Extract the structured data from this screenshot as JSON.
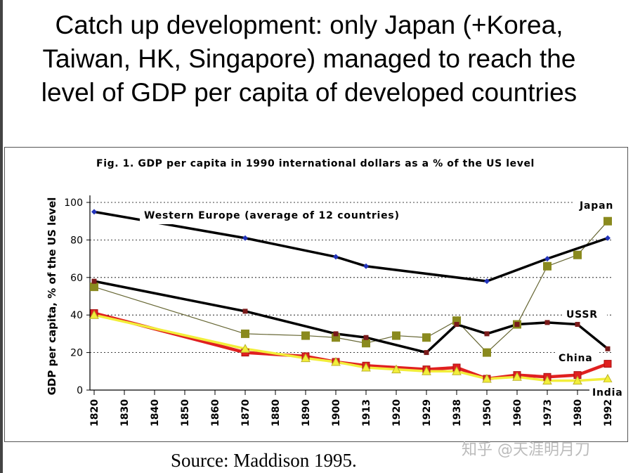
{
  "slide": {
    "title_lines": [
      "Catch up development: only Japan (+Korea,",
      "Taiwan, HK, Singapore) managed to reach the",
      "level of GDP per capita of developed countries"
    ],
    "source": "Source:  Maddison 1995.",
    "watermark": "知乎 @天涯明月刀"
  },
  "chart_data": {
    "type": "line",
    "title": "Fig. 1. GDP per capita in 1990 international dollars as a % of the US level",
    "ylabel": "GDP per capita, % of the US level",
    "xlabel": "",
    "ylim": [
      0,
      100
    ],
    "yticks": [
      0,
      20,
      40,
      60,
      80,
      100
    ],
    "grid": "horizontal dotted",
    "xticks": [
      "1820",
      "1830",
      "1840",
      "1850",
      "1860",
      "1870",
      "1880",
      "1890",
      "1900",
      "1913",
      "1920",
      "1929",
      "1938",
      "1950",
      "1960",
      "1973",
      "1980",
      "1992"
    ],
    "series": [
      {
        "name": "Western Europe (average of 12 countries)",
        "color": "#000000",
        "marker": "diamond",
        "marker_color": "#2233bb",
        "points": [
          [
            "1820",
            95
          ],
          [
            "1870",
            81
          ],
          [
            "1900",
            71
          ],
          [
            "1913",
            66
          ],
          [
            "1950",
            58
          ],
          [
            "1973",
            70
          ],
          [
            "1992",
            81
          ]
        ]
      },
      {
        "name": "Japan",
        "color": "#666633",
        "marker": "square",
        "marker_color": "#8a8a1e",
        "points": [
          [
            "1820",
            55
          ],
          [
            "1870",
            30
          ],
          [
            "1890",
            29
          ],
          [
            "1900",
            28
          ],
          [
            "1913",
            25
          ],
          [
            "1920",
            29
          ],
          [
            "1929",
            28
          ],
          [
            "1938",
            37
          ],
          [
            "1950",
            20
          ],
          [
            "1960",
            35
          ],
          [
            "1973",
            66
          ],
          [
            "1980",
            72
          ],
          [
            "1992",
            90
          ]
        ]
      },
      {
        "name": "USSR",
        "color": "#000000",
        "marker": "square",
        "marker_color": "#7a1a1a",
        "points": [
          [
            "1820",
            58
          ],
          [
            "1870",
            42
          ],
          [
            "1900",
            30
          ],
          [
            "1913",
            28
          ],
          [
            "1929",
            20
          ],
          [
            "1938",
            35
          ],
          [
            "1950",
            30
          ],
          [
            "1960",
            35
          ],
          [
            "1973",
            36
          ],
          [
            "1980",
            35
          ],
          [
            "1992",
            22
          ]
        ]
      },
      {
        "name": "China",
        "color": "#e02020",
        "marker": "square",
        "marker_color": "#e02020",
        "points": [
          [
            "1820",
            41
          ],
          [
            "1870",
            20
          ],
          [
            "1890",
            18
          ],
          [
            "1900",
            15
          ],
          [
            "1913",
            13
          ],
          [
            "1929",
            11
          ],
          [
            "1938",
            12
          ],
          [
            "1950",
            6
          ],
          [
            "1960",
            8
          ],
          [
            "1973",
            7
          ],
          [
            "1980",
            8
          ],
          [
            "1992",
            14
          ]
        ]
      },
      {
        "name": "India",
        "color": "#f2ee3a",
        "marker": "triangle",
        "marker_color": "#f2ee3a",
        "points": [
          [
            "1820",
            40
          ],
          [
            "1870",
            22
          ],
          [
            "1890",
            17
          ],
          [
            "1900",
            15
          ],
          [
            "1913",
            12
          ],
          [
            "1920",
            11
          ],
          [
            "1929",
            10
          ],
          [
            "1938",
            10
          ],
          [
            "1950",
            6
          ],
          [
            "1960",
            7
          ],
          [
            "1973",
            5
          ],
          [
            "1980",
            5
          ],
          [
            "1992",
            6
          ]
        ]
      }
    ],
    "labels": [
      "Western Europe (average of 12 countries)",
      "Japan",
      "USSR",
      "China",
      "India"
    ]
  }
}
